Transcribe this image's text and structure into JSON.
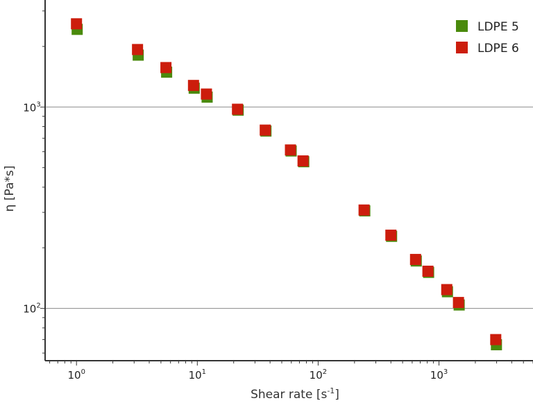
{
  "chart_data": {
    "type": "scatter",
    "title": "",
    "xlabel": {
      "base": "Shear rate [s",
      "sup": "-1",
      "tail": "]"
    },
    "ylabel": "η [Pa*s]",
    "xscale": "log",
    "yscale": "log",
    "xlim": [
      0.55,
      6000
    ],
    "ylim": [
      55,
      3400
    ],
    "x_ticks": [
      {
        "value": 1,
        "base": "10",
        "exp": "0"
      },
      {
        "value": 10,
        "base": "10",
        "exp": "1"
      },
      {
        "value": 100,
        "base": "10",
        "exp": "2"
      },
      {
        "value": 1000,
        "base": "10",
        "exp": "3"
      }
    ],
    "y_ticks": [
      {
        "value": 100,
        "base": "10",
        "exp": "2"
      },
      {
        "value": 1000,
        "base": "10",
        "exp": "3"
      }
    ],
    "grid": "horizontal-major",
    "legend_position": "top-right",
    "series": [
      {
        "name": "LDPE 5",
        "color": "#4a8a0c",
        "x": [
          1.0,
          3.2,
          5.5,
          9.3,
          11.9,
          21.5,
          36.5,
          59,
          75,
          240,
          400,
          640,
          810,
          1160,
          1450,
          2950
        ],
        "y": [
          2430,
          1810,
          1490,
          1240,
          1120,
          965,
          760,
          605,
          535,
          305,
          228,
          172,
          151,
          121,
          104,
          66
        ]
      },
      {
        "name": "LDPE 6",
        "color": "#cc1d0c",
        "x": [
          1.0,
          3.2,
          5.5,
          9.3,
          11.9,
          21.5,
          36.5,
          59,
          75,
          240,
          400,
          640,
          810,
          1160,
          1450,
          2950
        ],
        "y": [
          2590,
          1930,
          1570,
          1280,
          1160,
          975,
          768,
          612,
          540,
          308,
          231,
          175,
          153,
          124,
          107,
          70
        ]
      }
    ]
  }
}
